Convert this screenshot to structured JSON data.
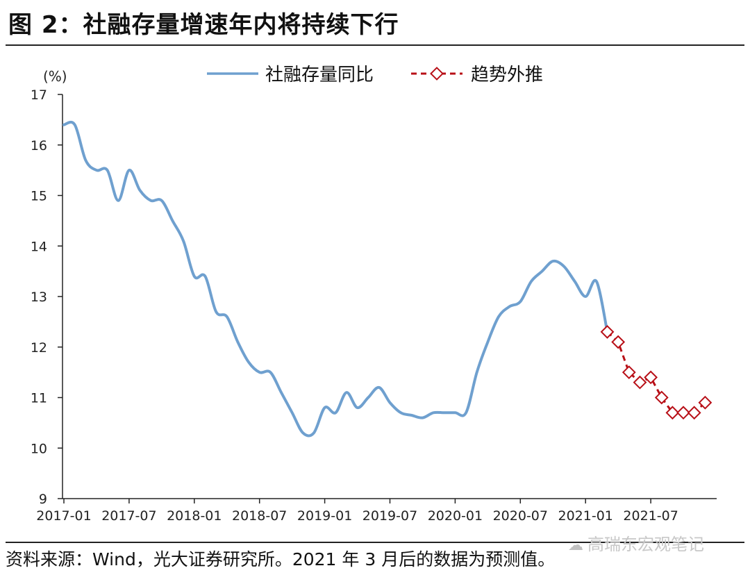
{
  "title": "图 2：社融存量增速年内将持续下行",
  "source": "资料来源：Wind，光大证券研究所。2021 年 3 月后的数据为预测值。",
  "watermark": {
    "text": "高瑞东宏观笔记",
    "icon": "wechat-icon"
  },
  "colors": {
    "actual": "#6fa0cf",
    "forecast": "#b80f17"
  },
  "chart_data": {
    "type": "line",
    "ylabel": "(%)",
    "ylim": [
      9,
      17
    ],
    "yticks": [
      "9",
      "10",
      "11",
      "12",
      "13",
      "14",
      "15",
      "16",
      "17"
    ],
    "xticks": [
      "2017-01",
      "2017-07",
      "2018-01",
      "2018-07",
      "2019-01",
      "2019-07",
      "2020-01",
      "2020-07",
      "2021-01",
      "2021-07"
    ],
    "legend_position": "top",
    "grid": false,
    "series": [
      {
        "name": "社融存量同比",
        "style": "solid",
        "x": [
          "2017-01",
          "2017-02",
          "2017-03",
          "2017-04",
          "2017-05",
          "2017-06",
          "2017-07",
          "2017-08",
          "2017-09",
          "2017-10",
          "2017-11",
          "2017-12",
          "2018-01",
          "2018-02",
          "2018-03",
          "2018-04",
          "2018-05",
          "2018-06",
          "2018-07",
          "2018-08",
          "2018-09",
          "2018-10",
          "2018-11",
          "2018-12",
          "2019-01",
          "2019-02",
          "2019-03",
          "2019-04",
          "2019-05",
          "2019-06",
          "2019-07",
          "2019-08",
          "2019-09",
          "2019-10",
          "2019-11",
          "2019-12",
          "2020-01",
          "2020-02",
          "2020-03",
          "2020-04",
          "2020-05",
          "2020-06",
          "2020-07",
          "2020-08",
          "2020-09",
          "2020-10",
          "2020-11",
          "2020-12",
          "2021-01",
          "2021-02",
          "2021-03"
        ],
        "values": [
          16.4,
          16.4,
          15.7,
          15.5,
          15.5,
          14.9,
          15.5,
          15.1,
          14.9,
          14.9,
          14.5,
          14.1,
          13.4,
          13.4,
          12.7,
          12.6,
          12.1,
          11.7,
          11.5,
          11.5,
          11.1,
          10.7,
          10.3,
          10.3,
          10.8,
          10.7,
          11.1,
          10.8,
          11.0,
          11.2,
          10.9,
          10.7,
          10.65,
          10.6,
          10.7,
          10.7,
          10.7,
          10.7,
          11.5,
          12.1,
          12.6,
          12.8,
          12.9,
          13.3,
          13.5,
          13.7,
          13.6,
          13.3,
          13.0,
          13.3,
          12.3
        ]
      },
      {
        "name": "趋势外推",
        "style": "dashed-diamond",
        "x": [
          "2021-03",
          "2021-04",
          "2021-05",
          "2021-06",
          "2021-07",
          "2021-08",
          "2021-09",
          "2021-10",
          "2021-11",
          "2021-12"
        ],
        "values": [
          12.3,
          12.1,
          11.5,
          11.3,
          11.4,
          11.0,
          10.7,
          10.7,
          10.7,
          10.9
        ]
      }
    ]
  }
}
